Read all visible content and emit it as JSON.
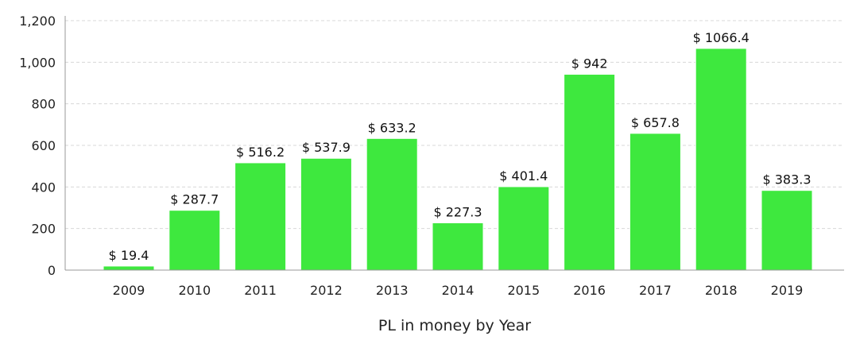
{
  "chart_data": {
    "type": "bar",
    "categories": [
      "2009",
      "2010",
      "2011",
      "2012",
      "2013",
      "2014",
      "2015",
      "2016",
      "2017",
      "2018",
      "2019"
    ],
    "values": [
      19.4,
      287.7,
      516.2,
      537.9,
      633.2,
      227.3,
      401.4,
      942,
      657.8,
      1066.4,
      383.3
    ],
    "data_labels": [
      "$ 19.4",
      "$ 287.7",
      "$ 516.2",
      "$ 537.9",
      "$ 633.2",
      "$ 227.3",
      "$ 401.4",
      "$ 942",
      "$ 657.8",
      "$ 1066.4",
      "$ 383.3"
    ],
    "title": "",
    "xlabel": "PL in money by Year",
    "ylabel": "",
    "ylim": [
      0,
      1200
    ],
    "yticks": [
      0,
      200,
      400,
      600,
      800,
      1000,
      1200
    ],
    "ytick_labels": [
      "0",
      "200",
      "400",
      "600",
      "800",
      "1,000",
      "1,200"
    ],
    "grid": true,
    "bar_color": "#3ee83e",
    "bar_edge_color": "#ffffff",
    "grid_color": "#d8d8d8",
    "axis_color": "#999999"
  }
}
